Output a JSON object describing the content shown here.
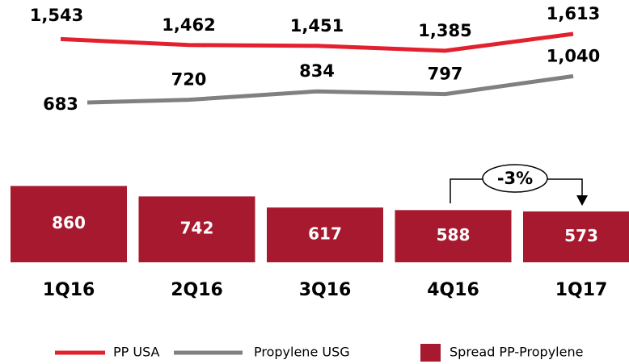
{
  "chart_data": {
    "type": "combo",
    "categories": [
      "1Q16",
      "2Q16",
      "3Q16",
      "4Q16",
      "1Q17"
    ],
    "series": [
      {
        "name": "PP USA",
        "type": "line",
        "color": "#e3212e",
        "values": [
          1543,
          1462,
          1451,
          1385,
          1613
        ],
        "value_labels": [
          "1,543",
          "1,462",
          "1,451",
          "1,385",
          "1,613"
        ]
      },
      {
        "name": "Propylene USG",
        "type": "line",
        "color": "#808080",
        "values": [
          683,
          720,
          834,
          797,
          1040
        ],
        "value_labels": [
          "683",
          "720",
          "834",
          "797",
          "1,040"
        ]
      },
      {
        "name": "Spread PP-Propylene",
        "type": "bar",
        "color": "#a6192e",
        "values": [
          860,
          742,
          617,
          588,
          573
        ]
      }
    ],
    "annotation": "-3%"
  }
}
